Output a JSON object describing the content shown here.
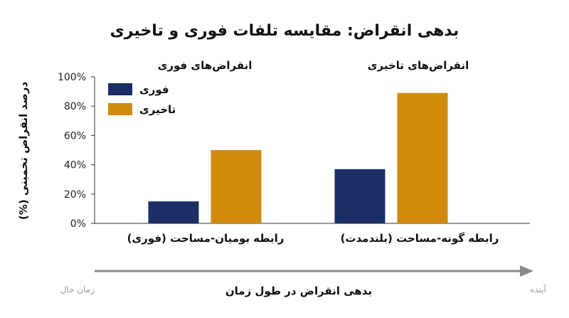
{
  "chart_data": {
    "type": "bar",
    "title": "بدهی انقراض: مقایسه تلفات فوری و تاخیری",
    "ylabel": "درصد انقراض تخمینی (%)",
    "ylim": [
      0,
      100
    ],
    "yticks": [
      "0%",
      "20%",
      "40%",
      "60%",
      "80%",
      "100%"
    ],
    "panel_titles": [
      "انقراض‌های فوری",
      "انقراض‌های تاخیری"
    ],
    "categories": [
      "رابطه بومیان-مساحت (فوری)",
      "رابطه گونه-مساحت (بلندمدت)"
    ],
    "series": [
      {
        "name": "فوری",
        "color": "#1b2f66",
        "values": [
          15,
          37
        ]
      },
      {
        "name": "تاخیری",
        "color": "#d08a0c",
        "values": [
          50,
          89
        ]
      }
    ],
    "legend_position": "top-left",
    "grid": false
  },
  "time_axis": {
    "label": "بدهی انقراض در طول زمان",
    "start": "زمان حال",
    "end": "آینده"
  }
}
